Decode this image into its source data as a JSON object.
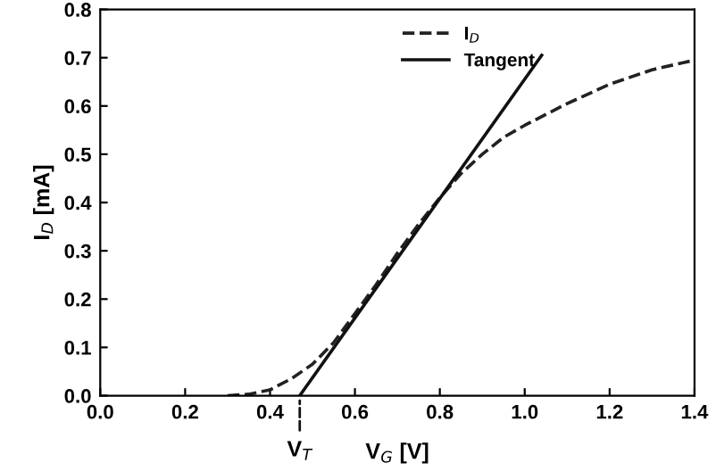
{
  "chart_data": {
    "type": "line",
    "xlabel": "V$_{G}$ [V]",
    "ylabel": "I$_{D}$ [mA]",
    "xlim": [
      0.0,
      1.4
    ],
    "ylim": [
      0.0,
      0.8
    ],
    "xticks": [
      {
        "value": 0.0,
        "label": "0.0"
      },
      {
        "value": 0.2,
        "label": "0.2"
      },
      {
        "value": 0.4,
        "label": "0.4"
      },
      {
        "value": 0.6,
        "label": "0.6"
      },
      {
        "value": 0.8,
        "label": "0.8"
      },
      {
        "value": 1.0,
        "label": "1.0"
      },
      {
        "value": 1.2,
        "label": "1.2"
      },
      {
        "value": 1.4,
        "label": "1.4"
      }
    ],
    "yticks": [
      {
        "value": 0.0,
        "label": "0.0"
      },
      {
        "value": 0.1,
        "label": "0.1"
      },
      {
        "value": 0.2,
        "label": "0.2"
      },
      {
        "value": 0.3,
        "label": "0.3"
      },
      {
        "value": 0.4,
        "label": "0.4"
      },
      {
        "value": 0.5,
        "label": "0.5"
      },
      {
        "value": 0.6,
        "label": "0.6"
      },
      {
        "value": 0.7,
        "label": "0.7"
      },
      {
        "value": 0.8,
        "label": "0.8"
      }
    ],
    "series": [
      {
        "name": "I$_{D}$",
        "color": "#222222",
        "line_style": "dashed",
        "x": [
          0.3,
          0.35,
          0.4,
          0.45,
          0.5,
          0.55,
          0.6,
          0.65,
          0.7,
          0.75,
          0.8,
          0.85,
          0.9,
          0.95,
          1.0,
          1.1,
          1.2,
          1.3,
          1.4
        ],
        "values": [
          0.0,
          0.003,
          0.012,
          0.035,
          0.065,
          0.11,
          0.17,
          0.23,
          0.295,
          0.355,
          0.41,
          0.46,
          0.5,
          0.535,
          0.56,
          0.605,
          0.645,
          0.675,
          0.695
        ]
      },
      {
        "name": "Tangent",
        "color": "#111111",
        "line_style": "solid",
        "x": [
          0.47,
          1.04
        ],
        "values": [
          0.0,
          0.705
        ]
      }
    ],
    "annotations": [
      {
        "text": "V$_{T}$",
        "x": 0.47,
        "y": 0.0
      }
    ],
    "legend": "top",
    "grid": false,
    "marker": "none"
  }
}
